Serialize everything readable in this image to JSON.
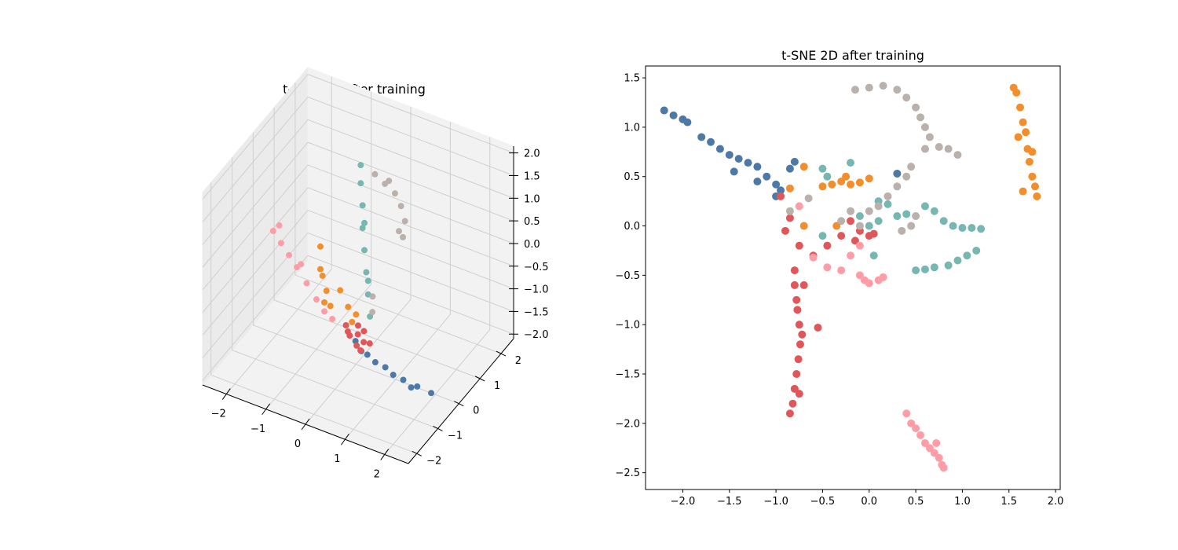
{
  "colors": {
    "blue": "#4e79a7",
    "orange": "#f28e2b",
    "red": "#e15759",
    "teal": "#76b7b2",
    "gray": "#bab0ac",
    "pink": "#ff9da7"
  },
  "chart_data": [
    {
      "type": "scatter",
      "projection": "3d",
      "title": "t-SNE 3D after training",
      "xlim": [
        -2.6,
        2.6
      ],
      "ylim": [
        -2.4,
        2.6
      ],
      "zlim": [
        -2.1,
        2.15
      ],
      "xticks": [
        -2,
        -1,
        0,
        1,
        2
      ],
      "yticks": [
        -2,
        -1,
        0,
        1,
        2
      ],
      "zticks": [
        -2.0,
        -1.5,
        -1.0,
        -0.5,
        0.0,
        0.5,
        1.0,
        1.5,
        2.0
      ],
      "xtick_labels": [
        "−2",
        "−1",
        "0",
        "1",
        "2"
      ],
      "ytick_labels": [
        "−2",
        "−1",
        "0",
        "1",
        "2"
      ],
      "ztick_labels": [
        "−2.0",
        "−1.5",
        "−1.0",
        "−0.5",
        "0.0",
        "0.5",
        "1.0",
        "1.5",
        "2.0"
      ],
      "grid": true,
      "series": [
        {
          "color": "#4e79a7",
          "points": [
            [
              0.2,
              -0.4,
              -1.3
            ],
            [
              0.5,
              -0.4,
              -1.5
            ],
            [
              0.9,
              -0.3,
              -1.7
            ],
            [
              1.3,
              -0.2,
              -1.9
            ],
            [
              1.6,
              -0.1,
              -2.0
            ],
            [
              1.9,
              0.0,
              -2.1
            ],
            [
              0.4,
              -0.5,
              -1.4
            ],
            [
              0.7,
              -0.4,
              -1.6
            ],
            [
              1.1,
              -0.3,
              -1.8
            ],
            [
              1.5,
              -0.2,
              -2.0
            ]
          ]
        },
        {
          "color": "#e15759",
          "points": [
            [
              -0.1,
              -0.2,
              -1.3
            ],
            [
              0.1,
              -0.1,
              -1.35
            ],
            [
              0.3,
              -0.2,
              -1.4
            ],
            [
              0.0,
              -0.3,
              -1.3
            ],
            [
              0.2,
              0.0,
              -1.3
            ],
            [
              0.4,
              -0.1,
              -1.45
            ],
            [
              -0.2,
              -0.1,
              -1.25
            ],
            [
              0.0,
              0.1,
              -1.3
            ],
            [
              0.3,
              -0.35,
              -1.5
            ],
            [
              0.15,
              -0.25,
              -1.5
            ]
          ]
        },
        {
          "color": "#f28e2b",
          "points": [
            [
              -0.9,
              0.0,
              0.2
            ],
            [
              -0.9,
              0.0,
              -0.3
            ],
            [
              -0.8,
              0.1,
              -0.8
            ],
            [
              -0.7,
              0.1,
              -1.1
            ],
            [
              -0.4,
              0.0,
              -0.6
            ],
            [
              -0.2,
              0.0,
              -0.9
            ],
            [
              0.0,
              0.0,
              -1.0
            ],
            [
              -0.9,
              0.1,
              -0.5
            ],
            [
              -0.8,
              0.0,
              -1.0
            ],
            [
              -0.1,
              0.0,
              -1.2
            ]
          ]
        },
        {
          "color": "#76b7b2",
          "points": [
            [
              -0.2,
              0.6,
              1.9
            ],
            [
              -0.2,
              0.6,
              1.5
            ],
            [
              -0.1,
              0.5,
              1.1
            ],
            [
              -0.1,
              0.5,
              0.6
            ],
            [
              0.0,
              0.4,
              0.2
            ],
            [
              0.1,
              0.3,
              -0.2
            ],
            [
              0.2,
              0.2,
              -0.6
            ],
            [
              0.3,
              0.1,
              -1.0
            ],
            [
              0.0,
              0.4,
              0.8
            ],
            [
              0.2,
              0.2,
              -0.3
            ]
          ]
        },
        {
          "color": "#bab0ac",
          "points": [
            [
              0.0,
              0.9,
              1.6
            ],
            [
              0.2,
              1.0,
              1.4
            ],
            [
              0.4,
              1.1,
              1.2
            ],
            [
              0.5,
              1.2,
              0.9
            ],
            [
              0.6,
              1.2,
              0.6
            ],
            [
              0.6,
              1.1,
              0.3
            ],
            [
              0.3,
              1.0,
              1.5
            ],
            [
              0.5,
              1.1,
              0.4
            ],
            [
              0.1,
              0.6,
              -0.9
            ],
            [
              0.2,
              0.4,
              -1.1
            ]
          ]
        },
        {
          "color": "#ff9da7",
          "points": [
            [
              -2.2,
              0.2,
              0.0
            ],
            [
              -2.0,
              0.2,
              -0.2
            ],
            [
              -1.8,
              0.2,
              -0.4
            ],
            [
              -1.6,
              0.2,
              -0.6
            ],
            [
              -1.3,
              0.1,
              -0.8
            ],
            [
              -1.0,
              0.0,
              -1.0
            ],
            [
              -0.8,
              0.0,
              -1.2
            ],
            [
              -0.6,
              0.0,
              -1.3
            ],
            [
              -2.1,
              0.3,
              0.1
            ],
            [
              -1.5,
              0.2,
              -0.5
            ]
          ]
        }
      ]
    },
    {
      "type": "scatter",
      "title": "t-SNE 2D after training",
      "xlim": [
        -2.4,
        2.05
      ],
      "ylim": [
        -2.67,
        1.62
      ],
      "xticks": [
        -2.0,
        -1.5,
        -1.0,
        -0.5,
        0.0,
        0.5,
        1.0,
        1.5,
        2.0
      ],
      "yticks": [
        -2.5,
        -2.0,
        -1.5,
        -1.0,
        -0.5,
        0.0,
        0.5,
        1.0,
        1.5
      ],
      "xtick_labels": [
        "−2.0",
        "−1.5",
        "−1.0",
        "−0.5",
        "0.0",
        "0.5",
        "1.0",
        "1.5",
        "2.0"
      ],
      "ytick_labels": [
        "−2.5",
        "−2.0",
        "−1.5",
        "−1.0",
        "−0.5",
        "0.0",
        "0.5",
        "1.0",
        "1.5"
      ],
      "grid": false,
      "series": [
        {
          "color": "#4e79a7",
          "points": [
            [
              -2.2,
              1.17
            ],
            [
              -2.1,
              1.12
            ],
            [
              -2.0,
              1.08
            ],
            [
              -1.95,
              1.05
            ],
            [
              -1.8,
              0.9
            ],
            [
              -1.7,
              0.85
            ],
            [
              -1.6,
              0.78
            ],
            [
              -1.5,
              0.72
            ],
            [
              -1.4,
              0.68
            ],
            [
              -1.3,
              0.64
            ],
            [
              -1.2,
              0.6
            ],
            [
              -1.1,
              0.5
            ],
            [
              -1.0,
              0.42
            ],
            [
              -1.0,
              0.3
            ],
            [
              -0.8,
              0.65
            ],
            [
              -0.85,
              0.58
            ],
            [
              -1.45,
              0.55
            ],
            [
              -1.2,
              0.45
            ],
            [
              0.3,
              0.53
            ],
            [
              -0.95,
              0.36
            ]
          ]
        },
        {
          "color": "#f28e2b",
          "points": [
            [
              1.58,
              1.35
            ],
            [
              1.62,
              1.2
            ],
            [
              1.65,
              1.05
            ],
            [
              1.6,
              0.9
            ],
            [
              1.7,
              0.78
            ],
            [
              1.72,
              0.65
            ],
            [
              1.75,
              0.5
            ],
            [
              1.78,
              0.4
            ],
            [
              1.65,
              0.35
            ],
            [
              1.8,
              0.3
            ],
            [
              1.55,
              1.4
            ],
            [
              1.68,
              0.95
            ],
            [
              1.75,
              0.75
            ],
            [
              -0.4,
              0.42
            ],
            [
              -0.3,
              0.45
            ],
            [
              -0.2,
              0.42
            ],
            [
              -0.1,
              0.44
            ],
            [
              0.0,
              0.48
            ],
            [
              -0.5,
              0.4
            ],
            [
              -0.25,
              0.5
            ],
            [
              -0.85,
              0.38
            ],
            [
              -0.7,
              0.6
            ],
            [
              -0.35,
              0.0
            ],
            [
              -0.7,
              0.0
            ]
          ]
        },
        {
          "color": "#e15759",
          "points": [
            [
              -0.8,
              -0.45
            ],
            [
              -0.8,
              -0.6
            ],
            [
              -0.78,
              -0.75
            ],
            [
              -0.77,
              -0.85
            ],
            [
              -0.75,
              -1.0
            ],
            [
              -0.74,
              -1.2
            ],
            [
              -0.76,
              -1.35
            ],
            [
              -0.78,
              -1.5
            ],
            [
              -0.8,
              -1.65
            ],
            [
              -0.82,
              -1.8
            ],
            [
              -0.85,
              -1.9
            ],
            [
              -0.7,
              -0.6
            ],
            [
              -0.55,
              -1.03
            ],
            [
              -0.6,
              -0.3
            ],
            [
              -0.75,
              -0.2
            ],
            [
              -0.9,
              -0.05
            ],
            [
              -0.85,
              0.08
            ],
            [
              -0.95,
              0.3
            ],
            [
              -0.2,
              0.05
            ],
            [
              -0.1,
              -0.05
            ],
            [
              0.0,
              -0.1
            ],
            [
              0.05,
              -0.08
            ],
            [
              -0.3,
              -0.1
            ],
            [
              -0.45,
              -0.2
            ],
            [
              -0.15,
              -0.15
            ],
            [
              -0.75,
              -1.7
            ],
            [
              -0.72,
              -1.1
            ]
          ]
        },
        {
          "color": "#76b7b2",
          "points": [
            [
              1.0,
              -0.02
            ],
            [
              1.1,
              -0.02
            ],
            [
              1.2,
              -0.03
            ],
            [
              1.15,
              -0.25
            ],
            [
              1.05,
              -0.3
            ],
            [
              0.95,
              -0.35
            ],
            [
              0.85,
              -0.4
            ],
            [
              0.7,
              -0.42
            ],
            [
              0.6,
              -0.44
            ],
            [
              0.5,
              -0.45
            ],
            [
              0.8,
              0.05
            ],
            [
              0.9,
              0.0
            ],
            [
              0.6,
              0.2
            ],
            [
              0.7,
              0.15
            ],
            [
              0.4,
              0.12
            ],
            [
              0.3,
              0.1
            ],
            [
              0.2,
              0.22
            ],
            [
              0.1,
              0.25
            ],
            [
              0.0,
              0.0
            ],
            [
              -0.1,
              0.1
            ],
            [
              -0.5,
              0.58
            ],
            [
              -0.45,
              0.5
            ],
            [
              -0.2,
              0.64
            ],
            [
              -0.5,
              -0.1
            ],
            [
              0.05,
              -0.3
            ],
            [
              0.1,
              0.05
            ]
          ]
        },
        {
          "color": "#bab0ac",
          "points": [
            [
              -0.15,
              1.38
            ],
            [
              0.0,
              1.4
            ],
            [
              0.15,
              1.42
            ],
            [
              0.3,
              1.38
            ],
            [
              0.4,
              1.3
            ],
            [
              0.5,
              1.2
            ],
            [
              0.55,
              1.1
            ],
            [
              0.6,
              1.0
            ],
            [
              0.65,
              0.9
            ],
            [
              0.75,
              0.8
            ],
            [
              0.85,
              0.78
            ],
            [
              0.95,
              0.72
            ],
            [
              0.6,
              0.78
            ],
            [
              0.45,
              0.6
            ],
            [
              0.4,
              0.5
            ],
            [
              0.3,
              0.4
            ],
            [
              0.2,
              0.3
            ],
            [
              0.1,
              0.2
            ],
            [
              0.0,
              0.15
            ],
            [
              -0.1,
              0.0
            ],
            [
              -0.3,
              0.05
            ],
            [
              0.5,
              0.1
            ],
            [
              0.45,
              0.0
            ],
            [
              0.35,
              -0.05
            ],
            [
              -0.85,
              0.15
            ],
            [
              -0.65,
              0.28
            ],
            [
              -0.2,
              0.15
            ]
          ]
        },
        {
          "color": "#ff9da7",
          "points": [
            [
              0.4,
              -1.9
            ],
            [
              0.45,
              -2.0
            ],
            [
              0.5,
              -2.05
            ],
            [
              0.55,
              -2.12
            ],
            [
              0.6,
              -2.2
            ],
            [
              0.65,
              -2.25
            ],
            [
              0.7,
              -2.3
            ],
            [
              0.75,
              -2.35
            ],
            [
              0.78,
              -2.42
            ],
            [
              0.8,
              -2.45
            ],
            [
              0.72,
              -2.2
            ],
            [
              -0.05,
              -0.55
            ],
            [
              0.0,
              -0.58
            ],
            [
              0.1,
              -0.55
            ],
            [
              0.15,
              -0.52
            ],
            [
              -0.1,
              -0.5
            ],
            [
              -0.3,
              -0.45
            ],
            [
              -0.45,
              -0.42
            ],
            [
              -0.2,
              -0.3
            ],
            [
              -0.1,
              -0.2
            ],
            [
              -0.6,
              -0.32
            ],
            [
              -0.75,
              0.2
            ]
          ]
        }
      ]
    }
  ],
  "charts": [
    {
      "title": "t-SNE 3D after training"
    },
    {
      "title": "t-SNE 2D after training"
    }
  ]
}
